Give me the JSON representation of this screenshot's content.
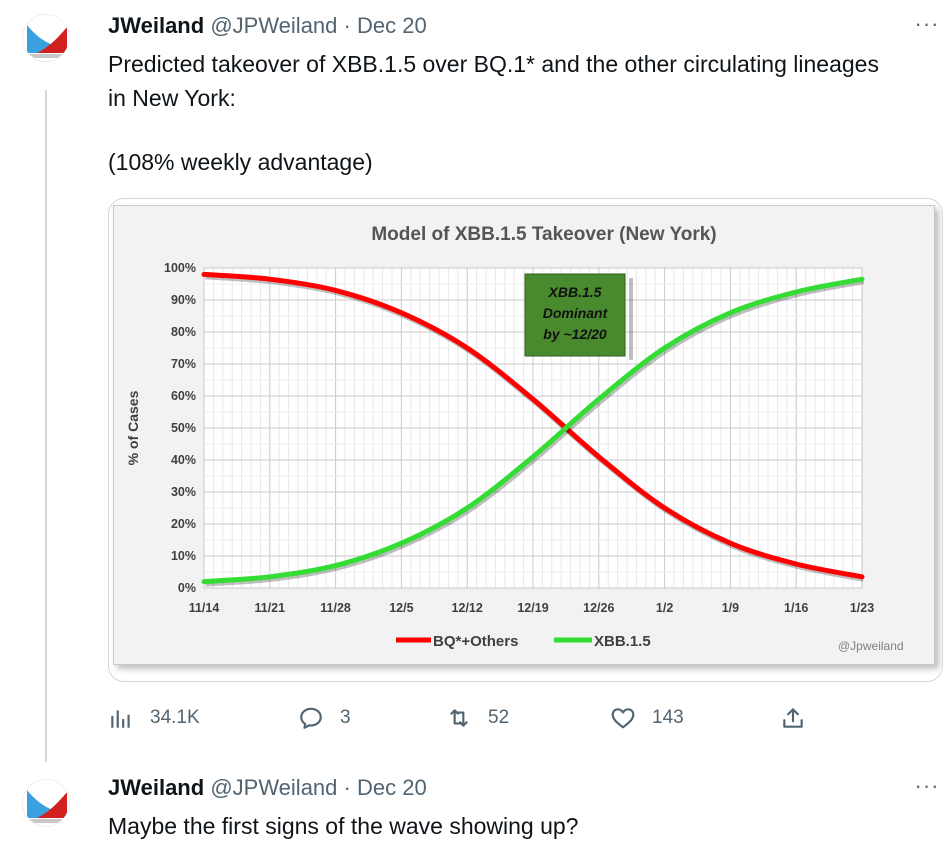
{
  "tweets": [
    {
      "author_name": "JWeiland",
      "handle": "@JPWeiland",
      "separator": "·",
      "date": "Dec 20",
      "more_label": "···",
      "text_lines": [
        "Predicted takeover of XBB.1.5 over BQ.1* and the other circulating lineages",
        "in New York:",
        "(108% weekly advantage)"
      ],
      "stats": {
        "views": "34.1K",
        "replies": "3",
        "retweets": "52",
        "likes": "143"
      }
    },
    {
      "author_name": "JWeiland",
      "handle": "@JPWeiland",
      "separator": "·",
      "date": "Dec 20",
      "more_label": "···",
      "text_lines": [
        "Maybe the first signs of the wave showing up?"
      ]
    }
  ],
  "icons": {
    "views": "bar-chart-icon",
    "replies": "comment-bubble-icon",
    "retweets": "retweet-icon",
    "likes": "heart-icon",
    "share": "share-upload-icon"
  },
  "colors": {
    "text_primary": "#0f1419",
    "text_secondary": "#536471",
    "thread_line": "#cfd9de",
    "series_bq": "#ff0000",
    "series_xbb": "#33dd33",
    "annotation_bg": "#4a8a2e"
  },
  "chart_data": {
    "type": "line",
    "title": "Model of XBB.1.5 Takeover (New York)",
    "ylabel": "% of Cases",
    "xlabel": "",
    "ylim": [
      0,
      100
    ],
    "ytick_labels": [
      "0%",
      "10%",
      "20%",
      "30%",
      "40%",
      "50%",
      "60%",
      "70%",
      "80%",
      "90%",
      "100%"
    ],
    "xtick_labels": [
      "11/14",
      "11/21",
      "11/28",
      "12/5",
      "12/12",
      "12/19",
      "12/26",
      "1/2",
      "1/9",
      "1/16",
      "1/23"
    ],
    "grid": true,
    "legend_position": "bottom-center",
    "annotation": {
      "lines": [
        "XBB.1.5",
        "Dominant",
        "by ~12/20"
      ]
    },
    "credit": "@Jpweiland",
    "series": [
      {
        "name": "BQ*+Others",
        "color": "#ff0000",
        "x": [
          "11/14",
          "11/21",
          "11/28",
          "12/5",
          "12/12",
          "12/19",
          "12/26",
          "1/2",
          "1/9",
          "1/16",
          "1/23"
        ],
        "values": [
          98,
          96.5,
          93,
          86,
          75,
          59,
          41,
          25,
          14,
          7.5,
          3.5
        ]
      },
      {
        "name": "XBB.1.5",
        "color": "#33dd33",
        "x": [
          "11/14",
          "11/21",
          "11/28",
          "12/5",
          "12/12",
          "12/19",
          "12/26",
          "1/2",
          "1/9",
          "1/16",
          "1/23"
        ],
        "values": [
          2,
          3.5,
          7,
          14,
          25,
          41,
          59,
          75,
          86,
          92.5,
          96.5
        ]
      }
    ]
  }
}
